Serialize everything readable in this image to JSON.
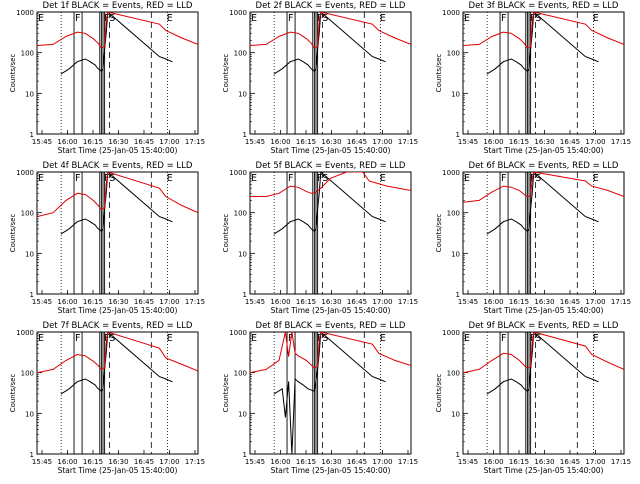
{
  "figure": {
    "xlabel": "Start Time (25-Jan-05 15:40:00)",
    "ylabel": "Counts/sec",
    "x_tick_labels": [
      "15:45",
      "16:00",
      "16:15",
      "16:30",
      "16:45",
      "17:00",
      "17:15"
    ],
    "y_tick_labels": [
      "1",
      "10",
      "100",
      "1000"
    ],
    "colors": {
      "events": "#000000",
      "lld": "#e00000",
      "axes": "#000000"
    }
  },
  "chart_data": [
    {
      "type": "line",
      "detector": "1f",
      "title": "Det 1f BLACK = Events, RED = LLD",
      "region_labels": [
        {
          "text": "E",
          "x": 0
        },
        {
          "text": "F",
          "x": 23
        },
        {
          "text": "FS",
          "x": 41
        },
        {
          "text": "E",
          "x": 80
        }
      ],
      "xlim": [
        0,
        100
      ],
      "ylim": [
        1,
        1000
      ],
      "yscale": "log",
      "solid_markers": [
        23,
        28,
        39,
        40,
        41,
        42
      ],
      "dashed_markers": [
        45,
        71
      ],
      "dotted_markers": [
        15,
        81
      ],
      "series": [
        {
          "name": "Events",
          "color": "#000000",
          "x": [
            15,
            20,
            25,
            30,
            33,
            36,
            38,
            40,
            41,
            42,
            43,
            44,
            76,
            80,
            84
          ],
          "y": [
            30,
            40,
            60,
            70,
            60,
            50,
            40,
            35,
            40,
            120,
            300,
            1000,
            80,
            70,
            60
          ]
        },
        {
          "name": "LLD",
          "color": "#e00000",
          "x": [
            0,
            10,
            18,
            25,
            30,
            35,
            38,
            40,
            42,
            43,
            44,
            76,
            80,
            90,
            100
          ],
          "y": [
            150,
            160,
            250,
            320,
            300,
            220,
            170,
            130,
            140,
            600,
            1000,
            500,
            350,
            230,
            160
          ]
        }
      ]
    },
    {
      "type": "line",
      "detector": "2f",
      "title": "Det 2f BLACK = Events, RED = LLD",
      "region_labels": [
        {
          "text": "E",
          "x": 0
        },
        {
          "text": "F",
          "x": 23
        },
        {
          "text": "FS",
          "x": 41
        },
        {
          "text": "E",
          "x": 80
        }
      ],
      "xlim": [
        0,
        100
      ],
      "ylim": [
        1,
        1000
      ],
      "yscale": "log",
      "solid_markers": [
        23,
        28,
        39,
        40,
        41,
        42
      ],
      "dashed_markers": [
        45,
        71
      ],
      "dotted_markers": [
        15,
        81
      ],
      "series": [
        {
          "name": "Events",
          "color": "#000000",
          "x": [
            15,
            20,
            25,
            30,
            33,
            36,
            38,
            40,
            41,
            42,
            43,
            44,
            76,
            80,
            84
          ],
          "y": [
            30,
            40,
            60,
            70,
            60,
            50,
            40,
            35,
            40,
            120,
            300,
            1000,
            80,
            70,
            60
          ]
        },
        {
          "name": "LLD",
          "color": "#e00000",
          "x": [
            0,
            10,
            18,
            25,
            30,
            35,
            38,
            40,
            42,
            43,
            44,
            76,
            80,
            90,
            100
          ],
          "y": [
            150,
            160,
            250,
            320,
            300,
            220,
            170,
            130,
            140,
            600,
            1000,
            500,
            350,
            230,
            160
          ]
        }
      ]
    },
    {
      "type": "line",
      "detector": "3f",
      "title": "Det 3f BLACK = Events, RED = LLD",
      "region_labels": [
        {
          "text": "E",
          "x": 0
        },
        {
          "text": "F",
          "x": 23
        },
        {
          "text": "FS",
          "x": 41
        },
        {
          "text": "E",
          "x": 80
        }
      ],
      "xlim": [
        0,
        100
      ],
      "ylim": [
        1,
        1000
      ],
      "yscale": "log",
      "solid_markers": [
        23,
        28,
        39,
        40,
        41,
        42
      ],
      "dashed_markers": [
        45,
        71
      ],
      "dotted_markers": [
        15,
        81
      ],
      "series": [
        {
          "name": "Events",
          "color": "#000000",
          "x": [
            15,
            20,
            25,
            30,
            33,
            36,
            38,
            40,
            41,
            42,
            43,
            44,
            76,
            80,
            84
          ],
          "y": [
            30,
            40,
            60,
            70,
            60,
            50,
            40,
            35,
            40,
            120,
            300,
            1000,
            80,
            70,
            60
          ]
        },
        {
          "name": "LLD",
          "color": "#e00000",
          "x": [
            0,
            10,
            18,
            25,
            30,
            35,
            38,
            40,
            42,
            43,
            44,
            76,
            80,
            90,
            100
          ],
          "y": [
            150,
            160,
            250,
            320,
            300,
            220,
            170,
            130,
            140,
            600,
            1000,
            500,
            350,
            230,
            160
          ]
        }
      ]
    },
    {
      "type": "line",
      "detector": "4f",
      "title": "Det 4f BLACK = Events, RED = LLD",
      "region_labels": [
        {
          "text": "E",
          "x": 0
        },
        {
          "text": "F",
          "x": 23
        },
        {
          "text": "FS",
          "x": 41
        },
        {
          "text": "E",
          "x": 80
        }
      ],
      "xlim": [
        0,
        100
      ],
      "ylim": [
        1,
        1000
      ],
      "yscale": "log",
      "solid_markers": [
        23,
        28,
        39,
        40,
        41,
        42
      ],
      "dashed_markers": [
        45,
        71
      ],
      "dotted_markers": [
        15,
        81
      ],
      "series": [
        {
          "name": "Events",
          "color": "#000000",
          "x": [
            15,
            20,
            25,
            30,
            33,
            36,
            38,
            40,
            41,
            42,
            43,
            44,
            76,
            80,
            84
          ],
          "y": [
            30,
            40,
            60,
            70,
            60,
            50,
            40,
            35,
            40,
            120,
            300,
            1000,
            80,
            70,
            60
          ]
        },
        {
          "name": "LLD",
          "color": "#e00000",
          "x": [
            0,
            10,
            18,
            25,
            30,
            35,
            38,
            40,
            42,
            43,
            44,
            76,
            80,
            90,
            100
          ],
          "y": [
            80,
            100,
            200,
            300,
            280,
            200,
            150,
            120,
            130,
            500,
            1000,
            400,
            250,
            150,
            100
          ]
        }
      ]
    },
    {
      "type": "line",
      "detector": "5f",
      "title": "Det 5f BLACK = Events, RED = LLD",
      "region_labels": [
        {
          "text": "E",
          "x": 0
        },
        {
          "text": "F",
          "x": 23
        },
        {
          "text": "FS",
          "x": 41
        },
        {
          "text": "E",
          "x": 80
        }
      ],
      "xlim": [
        0,
        100
      ],
      "ylim": [
        1,
        1000
      ],
      "yscale": "log",
      "solid_markers": [
        23,
        28,
        39,
        40,
        41,
        42
      ],
      "dashed_markers": [
        45,
        71
      ],
      "dotted_markers": [
        15,
        81
      ],
      "series": [
        {
          "name": "Events",
          "color": "#000000",
          "x": [
            15,
            20,
            25,
            30,
            33,
            36,
            38,
            40,
            41,
            42,
            43,
            44,
            76,
            80,
            84
          ],
          "y": [
            30,
            40,
            60,
            70,
            60,
            50,
            40,
            35,
            40,
            120,
            300,
            1000,
            80,
            70,
            60
          ]
        },
        {
          "name": "LLD",
          "color": "#e00000",
          "x": [
            0,
            10,
            18,
            25,
            30,
            35,
            38,
            40,
            44,
            50,
            60,
            70,
            74,
            85,
            100
          ],
          "y": [
            250,
            250,
            300,
            450,
            420,
            330,
            300,
            300,
            400,
            700,
            1000,
            1000,
            600,
            450,
            350
          ]
        }
      ]
    },
    {
      "type": "line",
      "detector": "6f",
      "title": "Det 6f BLACK = Events, RED = LLD",
      "region_labels": [
        {
          "text": "E",
          "x": 0
        },
        {
          "text": "F",
          "x": 23
        },
        {
          "text": "FS",
          "x": 41
        },
        {
          "text": "E",
          "x": 80
        }
      ],
      "xlim": [
        0,
        100
      ],
      "ylim": [
        1,
        1000
      ],
      "yscale": "log",
      "solid_markers": [
        23,
        28,
        39,
        40,
        41,
        42
      ],
      "dashed_markers": [
        45,
        71
      ],
      "dotted_markers": [
        15,
        81
      ],
      "series": [
        {
          "name": "Events",
          "color": "#000000",
          "x": [
            15,
            20,
            25,
            30,
            33,
            36,
            38,
            40,
            41,
            42,
            43,
            44,
            76,
            80,
            84
          ],
          "y": [
            30,
            40,
            60,
            70,
            60,
            50,
            40,
            35,
            40,
            120,
            300,
            1000,
            80,
            70,
            60
          ]
        },
        {
          "name": "LLD",
          "color": "#e00000",
          "x": [
            0,
            10,
            18,
            25,
            30,
            35,
            38,
            40,
            42,
            43,
            44,
            76,
            80,
            90,
            100
          ],
          "y": [
            180,
            200,
            320,
            450,
            420,
            350,
            280,
            250,
            260,
            700,
            1000,
            600,
            450,
            350,
            250
          ]
        }
      ]
    },
    {
      "type": "line",
      "detector": "7f",
      "title": "Det 7f BLACK = Events, RED = LLD",
      "region_labels": [
        {
          "text": "E",
          "x": 0
        },
        {
          "text": "F",
          "x": 23
        },
        {
          "text": "FS",
          "x": 41
        },
        {
          "text": "E",
          "x": 80
        }
      ],
      "xlim": [
        0,
        100
      ],
      "ylim": [
        1,
        1000
      ],
      "yscale": "log",
      "solid_markers": [
        23,
        28,
        39,
        40,
        41,
        42
      ],
      "dashed_markers": [
        45,
        71
      ],
      "dotted_markers": [
        15,
        81
      ],
      "series": [
        {
          "name": "Events",
          "color": "#000000",
          "x": [
            15,
            20,
            25,
            30,
            33,
            36,
            38,
            40,
            41,
            42,
            43,
            44,
            76,
            80,
            84
          ],
          "y": [
            30,
            40,
            60,
            70,
            60,
            50,
            40,
            35,
            40,
            120,
            300,
            1000,
            80,
            70,
            60
          ]
        },
        {
          "name": "LLD",
          "color": "#e00000",
          "x": [
            0,
            10,
            18,
            25,
            30,
            35,
            38,
            40,
            42,
            43,
            44,
            76,
            80,
            90,
            100
          ],
          "y": [
            100,
            120,
            200,
            280,
            260,
            190,
            150,
            120,
            130,
            550,
            1000,
            400,
            230,
            160,
            110
          ]
        }
      ]
    },
    {
      "type": "line",
      "detector": "8f",
      "title": "Det 8f BLACK = Events, RED = LLD",
      "region_labels": [
        {
          "text": "E",
          "x": 0
        },
        {
          "text": "F",
          "x": 23
        },
        {
          "text": "FS",
          "x": 41
        },
        {
          "text": "E",
          "x": 80
        }
      ],
      "xlim": [
        0,
        100
      ],
      "ylim": [
        1,
        1000
      ],
      "yscale": "log",
      "solid_markers": [
        23,
        28,
        39,
        40,
        41,
        42
      ],
      "dashed_markers": [
        45,
        71
      ],
      "dotted_markers": [
        15,
        81
      ],
      "series": [
        {
          "name": "Events",
          "color": "#000000",
          "x": [
            15,
            20,
            22,
            24,
            26,
            28,
            30,
            33,
            36,
            40,
            42,
            43,
            44,
            76,
            80,
            84
          ],
          "y": [
            30,
            40,
            8,
            60,
            1,
            70,
            60,
            50,
            40,
            35,
            120,
            300,
            1000,
            80,
            70,
            60
          ]
        },
        {
          "name": "LLD",
          "color": "#e00000",
          "x": [
            0,
            10,
            18,
            22,
            24,
            26,
            28,
            30,
            35,
            40,
            42,
            43,
            44,
            76,
            80,
            90,
            100
          ],
          "y": [
            100,
            120,
            200,
            1000,
            250,
            1000,
            300,
            260,
            200,
            130,
            140,
            600,
            1000,
            500,
            300,
            200,
            150
          ]
        }
      ]
    },
    {
      "type": "line",
      "detector": "9f",
      "title": "Det 9f BLACK = Events, RED = LLD",
      "region_labels": [
        {
          "text": "E",
          "x": 0
        },
        {
          "text": "F",
          "x": 23
        },
        {
          "text": "FS",
          "x": 41
        },
        {
          "text": "E",
          "x": 80
        }
      ],
      "xlim": [
        0,
        100
      ],
      "ylim": [
        1,
        1000
      ],
      "yscale": "log",
      "solid_markers": [
        23,
        28,
        39,
        40,
        41,
        42
      ],
      "dashed_markers": [
        45,
        71
      ],
      "dotted_markers": [
        15,
        81
      ],
      "series": [
        {
          "name": "Events",
          "color": "#000000",
          "x": [
            15,
            20,
            25,
            30,
            33,
            36,
            38,
            40,
            41,
            42,
            43,
            44,
            76,
            80,
            84
          ],
          "y": [
            30,
            40,
            60,
            70,
            60,
            50,
            40,
            35,
            40,
            120,
            300,
            1000,
            80,
            70,
            60
          ]
        },
        {
          "name": "LLD",
          "color": "#e00000",
          "x": [
            0,
            10,
            18,
            25,
            30,
            35,
            38,
            40,
            42,
            43,
            44,
            76,
            80,
            90,
            100
          ],
          "y": [
            100,
            120,
            200,
            300,
            280,
            200,
            150,
            130,
            140,
            550,
            1000,
            450,
            280,
            180,
            120
          ]
        }
      ]
    }
  ]
}
